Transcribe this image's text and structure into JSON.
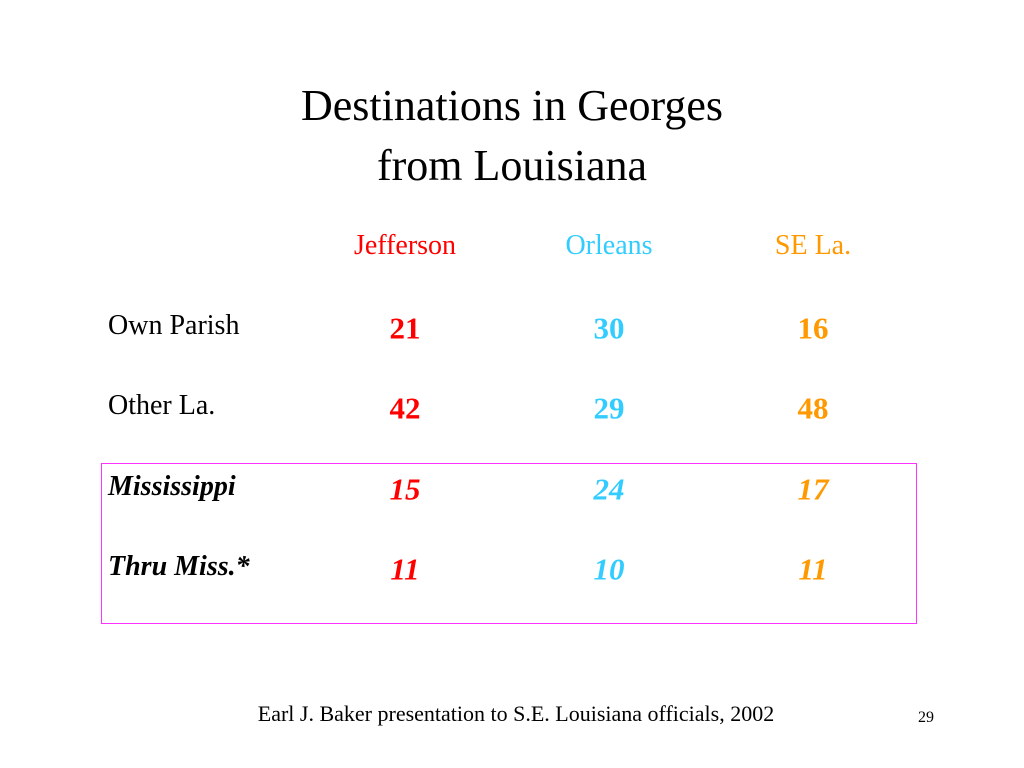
{
  "header": {
    "title_lines": [
      "Destinations in Georges",
      "from Louisiana"
    ]
  },
  "table": {
    "columns": [
      "Jefferson",
      "Orleans",
      "SE La."
    ],
    "rows": [
      {
        "label": "Own Parish",
        "values": [
          21,
          30,
          16
        ]
      },
      {
        "label": "Other La.",
        "values": [
          42,
          29,
          48
        ]
      },
      {
        "label": "Mississippi",
        "values": [
          15,
          24,
          17
        ]
      },
      {
        "label": "Thru Miss.*",
        "values": [
          11,
          10,
          11
        ]
      }
    ]
  },
  "footer": {
    "text": "Earl J. Baker presentation to S.E. Louisiana officials, 2002",
    "page": 29
  }
}
